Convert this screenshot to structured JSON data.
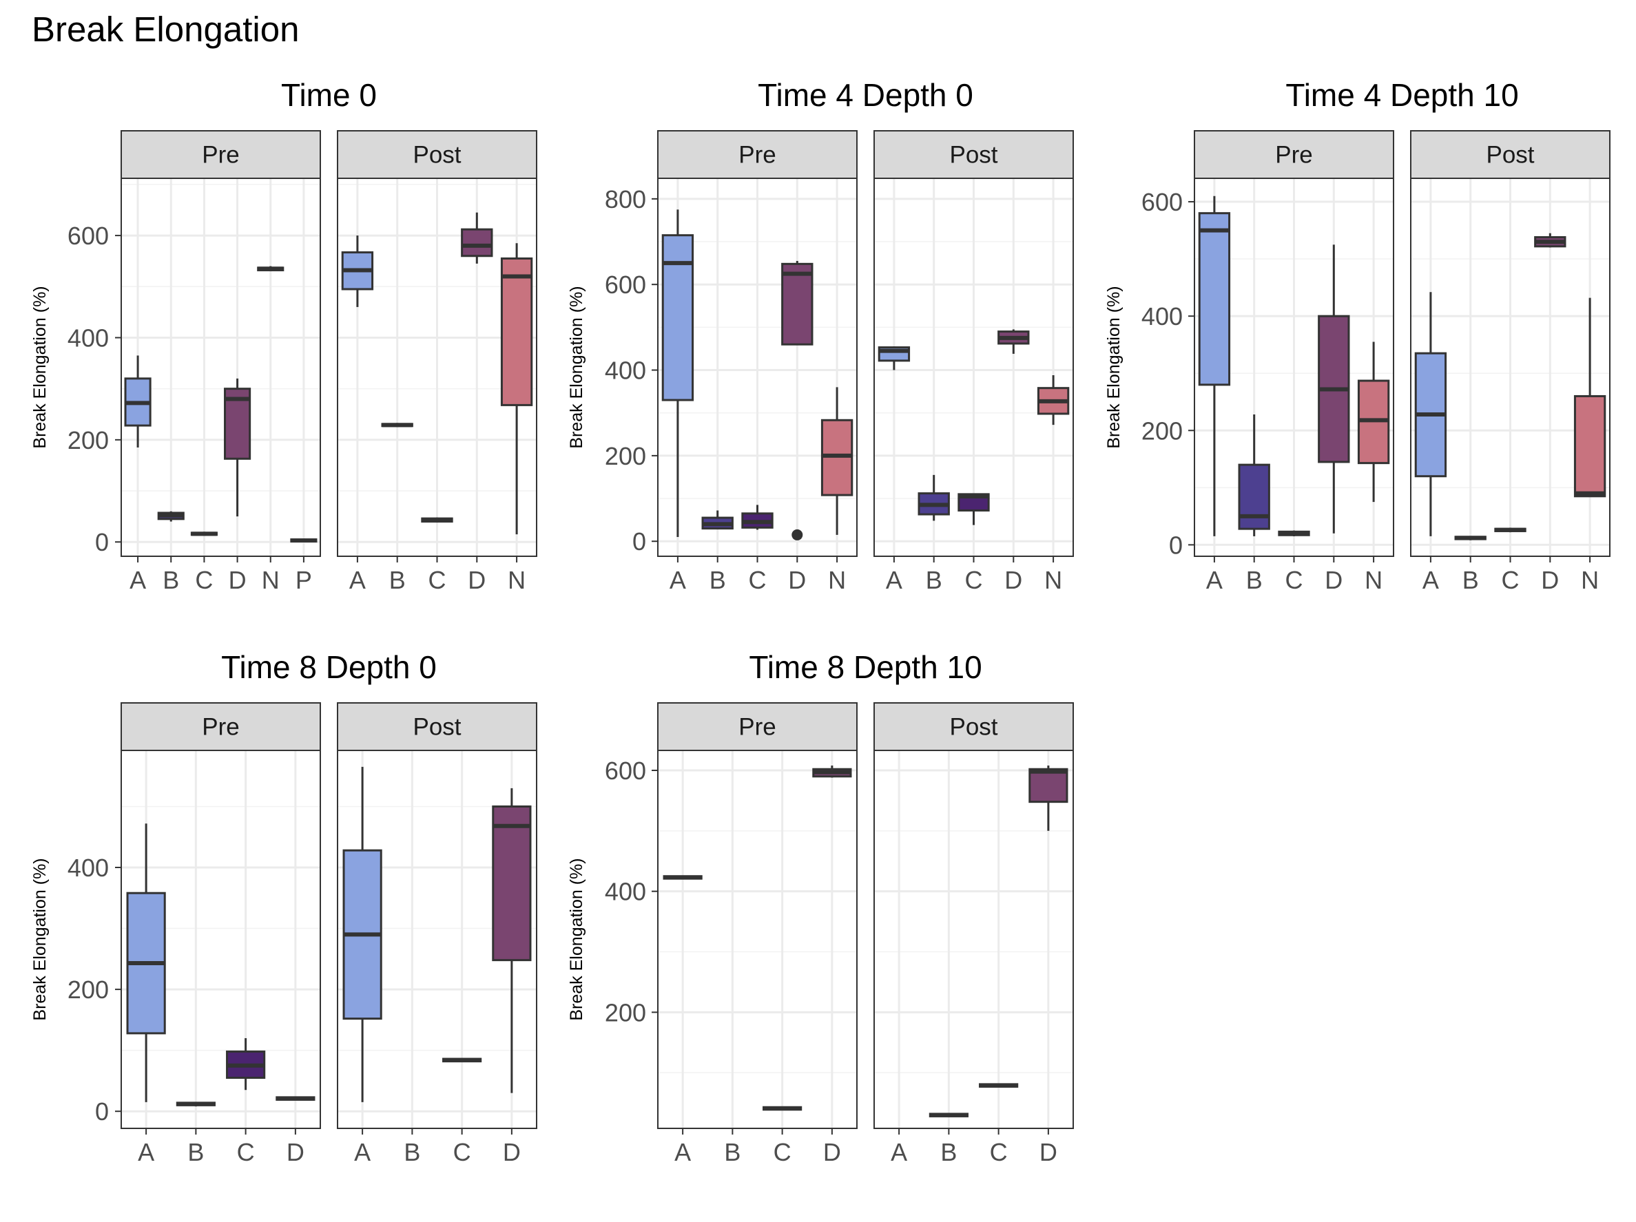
{
  "title": "Break Elongation",
  "colors": {
    "A": "#8aa3e0",
    "B": "#4d4090",
    "C": "#4b2470",
    "D": "#7a4570",
    "N": "#c8737f",
    "P": "#d7a2a8"
  },
  "chart_data": [
    {
      "type": "box",
      "title": "Time 0",
      "ylabel": "Break Elongation (%)",
      "ylim": [
        -28,
        712
      ],
      "yticks": [
        0,
        200,
        400,
        600
      ],
      "panels": [
        {
          "label": "Pre",
          "categories": [
            "A",
            "B",
            "C",
            "D",
            "N",
            "P"
          ],
          "boxes": [
            {
              "cat": "A",
              "min": 185,
              "q1": 228,
              "median": 272,
              "q3": 320,
              "max": 365
            },
            {
              "cat": "B",
              "min": 40,
              "q1": 45,
              "median": 52,
              "q3": 57,
              "max": 60
            },
            {
              "cat": "C",
              "min": 12,
              "q1": 14,
              "median": 16,
              "q3": 18,
              "max": 20
            },
            {
              "cat": "D",
              "min": 50,
              "q1": 163,
              "median": 280,
              "q3": 300,
              "max": 320
            },
            {
              "cat": "N",
              "min": 530,
              "q1": 532,
              "median": 535,
              "q3": 537,
              "max": 540
            },
            {
              "cat": "P",
              "min": 0,
              "q1": 1,
              "median": 3,
              "q3": 5,
              "max": 6
            }
          ],
          "outliers": []
        },
        {
          "label": "Post",
          "categories": [
            "A",
            "B",
            "C",
            "D",
            "N"
          ],
          "boxes": [
            {
              "cat": "A",
              "min": 460,
              "q1": 495,
              "median": 532,
              "q3": 567,
              "max": 600
            },
            {
              "cat": "B",
              "min": 225,
              "q1": 227,
              "median": 229,
              "q3": 231,
              "max": 233
            },
            {
              "cat": "C",
              "min": 38,
              "q1": 40,
              "median": 43,
              "q3": 46,
              "max": 48
            },
            {
              "cat": "D",
              "min": 545,
              "q1": 560,
              "median": 580,
              "q3": 612,
              "max": 645
            },
            {
              "cat": "N",
              "min": 15,
              "q1": 268,
              "median": 520,
              "q3": 555,
              "max": 585
            }
          ],
          "outliers": []
        }
      ]
    },
    {
      "type": "box",
      "title": "Time 4 Depth 0",
      "ylabel": "Break Elongation (%)",
      "ylim": [
        -35,
        848
      ],
      "yticks": [
        0,
        200,
        400,
        600,
        800
      ],
      "panels": [
        {
          "label": "Pre",
          "categories": [
            "A",
            "B",
            "C",
            "D",
            "N"
          ],
          "boxes": [
            {
              "cat": "A",
              "min": 10,
              "q1": 330,
              "median": 650,
              "q3": 715,
              "max": 775
            },
            {
              "cat": "B",
              "min": 28,
              "q1": 30,
              "median": 40,
              "q3": 55,
              "max": 72
            },
            {
              "cat": "C",
              "min": 27,
              "q1": 32,
              "median": 45,
              "q3": 65,
              "max": 85
            },
            {
              "cat": "D",
              "min": 460,
              "q1": 460,
              "median": 625,
              "q3": 648,
              "max": 655
            },
            {
              "cat": "N",
              "min": 15,
              "q1": 108,
              "median": 200,
              "q3": 283,
              "max": 360
            }
          ],
          "outliers": [
            {
              "cat": "D",
              "value": 15
            }
          ]
        },
        {
          "label": "Post",
          "categories": [
            "A",
            "B",
            "C",
            "D",
            "N"
          ],
          "boxes": [
            {
              "cat": "A",
              "min": 400,
              "q1": 422,
              "median": 445,
              "q3": 453,
              "max": 455
            },
            {
              "cat": "B",
              "min": 48,
              "q1": 63,
              "median": 85,
              "q3": 112,
              "max": 155
            },
            {
              "cat": "C",
              "min": 38,
              "q1": 72,
              "median": 105,
              "q3": 110,
              "max": 112
            },
            {
              "cat": "D",
              "min": 438,
              "q1": 462,
              "median": 475,
              "q3": 490,
              "max": 495
            },
            {
              "cat": "N",
              "min": 272,
              "q1": 298,
              "median": 327,
              "q3": 358,
              "max": 388
            }
          ],
          "outliers": []
        }
      ]
    },
    {
      "type": "box",
      "title": "Time 4 Depth 10",
      "ylabel": "Break Elongation (%)",
      "ylim": [
        -20,
        641
      ],
      "yticks": [
        0,
        200,
        400,
        600
      ],
      "panels": [
        {
          "label": "Pre",
          "categories": [
            "A",
            "B",
            "C",
            "D",
            "N"
          ],
          "boxes": [
            {
              "cat": "A",
              "min": 15,
              "q1": 280,
              "median": 550,
              "q3": 580,
              "max": 610
            },
            {
              "cat": "B",
              "min": 15,
              "q1": 28,
              "median": 50,
              "q3": 140,
              "max": 228
            },
            {
              "cat": "C",
              "min": 15,
              "q1": 17,
              "median": 20,
              "q3": 23,
              "max": 25
            },
            {
              "cat": "D",
              "min": 20,
              "q1": 145,
              "median": 272,
              "q3": 400,
              "max": 525
            },
            {
              "cat": "N",
              "min": 75,
              "q1": 143,
              "median": 218,
              "q3": 287,
              "max": 355
            }
          ],
          "outliers": []
        },
        {
          "label": "Post",
          "categories": [
            "A",
            "B",
            "C",
            "D",
            "N"
          ],
          "boxes": [
            {
              "cat": "A",
              "min": 15,
              "q1": 120,
              "median": 228,
              "q3": 335,
              "max": 442
            },
            {
              "cat": "B",
              "min": 8,
              "q1": 10,
              "median": 12,
              "q3": 14,
              "max": 15
            },
            {
              "cat": "C",
              "min": 22,
              "q1": 24,
              "median": 26,
              "q3": 28,
              "max": 30
            },
            {
              "cat": "D",
              "min": 520,
              "q1": 522,
              "median": 530,
              "q3": 538,
              "max": 545
            },
            {
              "cat": "N",
              "min": 85,
              "q1": 85,
              "median": 90,
              "q3": 260,
              "max": 432
            }
          ],
          "outliers": []
        }
      ]
    },
    {
      "type": "box",
      "title": "Time 8 Depth 0",
      "ylabel": "Break Elongation (%)",
      "ylim": [
        -28,
        592
      ],
      "yticks": [
        0,
        200,
        400
      ],
      "panels": [
        {
          "label": "Pre",
          "categories": [
            "A",
            "B",
            "C",
            "D"
          ],
          "boxes": [
            {
              "cat": "A",
              "min": 15,
              "q1": 128,
              "median": 243,
              "q3": 358,
              "max": 472
            },
            {
              "cat": "B",
              "min": 8,
              "q1": 10,
              "median": 12,
              "q3": 14,
              "max": 15
            },
            {
              "cat": "C",
              "min": 35,
              "q1": 55,
              "median": 75,
              "q3": 98,
              "max": 120
            },
            {
              "cat": "D",
              "min": 18,
              "q1": 19,
              "median": 21,
              "q3": 23,
              "max": 24
            }
          ],
          "outliers": []
        },
        {
          "label": "Post",
          "categories": [
            "A",
            "B",
            "C",
            "D"
          ],
          "boxes": [
            {
              "cat": "A",
              "min": 15,
              "q1": 152,
              "median": 290,
              "q3": 428,
              "max": 565
            },
            {
              "cat": "C",
              "min": 81,
              "q1": 82,
              "median": 84,
              "q3": 86,
              "max": 87
            },
            {
              "cat": "D",
              "min": 30,
              "q1": 248,
              "median": 468,
              "q3": 500,
              "max": 530
            }
          ],
          "outliers": []
        }
      ]
    },
    {
      "type": "box",
      "title": "Time 8 Depth 10",
      "ylabel": "Break Elongation (%)",
      "ylim": [
        8,
        633
      ],
      "yticks": [
        200,
        400,
        600
      ],
      "panels": [
        {
          "label": "Pre",
          "categories": [
            "A",
            "B",
            "C",
            "D"
          ],
          "boxes": [
            {
              "cat": "A",
              "min": 420,
              "q1": 421,
              "median": 423,
              "q3": 425,
              "max": 426
            },
            {
              "cat": "C",
              "min": 38,
              "q1": 39,
              "median": 41,
              "q3": 43,
              "max": 44
            },
            {
              "cat": "D",
              "min": 588,
              "q1": 590,
              "median": 597,
              "q3": 602,
              "max": 608
            }
          ],
          "outliers": []
        },
        {
          "label": "Post",
          "categories": [
            "A",
            "B",
            "C",
            "D"
          ],
          "boxes": [
            {
              "cat": "B",
              "min": 27,
              "q1": 28,
              "median": 30,
              "q3": 32,
              "max": 33
            },
            {
              "cat": "C",
              "min": 76,
              "q1": 77,
              "median": 79,
              "q3": 81,
              "max": 82
            },
            {
              "cat": "D",
              "min": 500,
              "q1": 548,
              "median": 598,
              "q3": 602,
              "max": 608
            }
          ],
          "outliers": []
        }
      ]
    }
  ]
}
